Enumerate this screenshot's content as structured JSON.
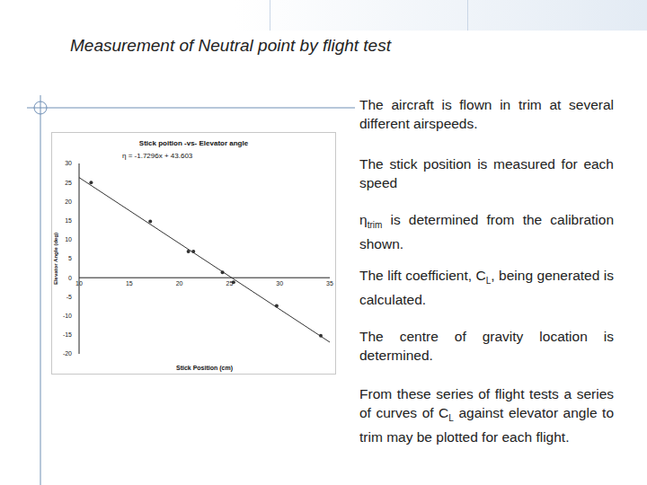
{
  "title": "Measurement of Neutral point by flight test",
  "paragraphs": [
    [
      {
        "text": "The aircraft is flown in trim at several different airspeeds."
      }
    ],
    [
      {
        "text": "The stick position is measured for each speed"
      }
    ],
    [
      {
        "text": "η"
      },
      {
        "text": "trim",
        "sub": true
      },
      {
        "text": " is determined from the calibration shown."
      }
    ],
    [
      {
        "text": "The lift coefficient, C"
      },
      {
        "text": "L",
        "sub": true
      },
      {
        "text": ", being generated is calculated."
      }
    ],
    [
      {
        "text": "The centre of gravity location is determined."
      }
    ],
    [
      {
        "text": "From these series of flight tests a series of curves of C"
      },
      {
        "text": "L",
        "sub": true
      },
      {
        "text": " against elevator angle to trim may be plotted for each flight."
      }
    ]
  ],
  "chart_data": {
    "type": "scatter",
    "title": "Stick poition -vs- Elevator angle",
    "annotations": [
      "η = -1.7296x + 43.603"
    ],
    "x_label": "Stick Position (cm)",
    "y_label": "Elevator Angle (deg)",
    "x": [
      11.2,
      17.1,
      20.9,
      21.4,
      24.3,
      25.4,
      29.7,
      34.1
    ],
    "values": [
      25,
      14.8,
      6.9,
      6.9,
      1.4,
      -1.2,
      -7.4,
      -15.2
    ],
    "color": "#333333",
    "marker": "circle",
    "trendline": {
      "slope": -1.7296,
      "intercept": 43.603
    },
    "xlim": [
      10,
      35
    ],
    "xticks": [
      10,
      15,
      20,
      25,
      30,
      35
    ],
    "ylim": [
      -20,
      30
    ],
    "yticks": [
      -20,
      -15,
      -10,
      -5,
      0,
      5,
      10,
      15,
      20,
      25,
      30
    ],
    "grid": false
  }
}
